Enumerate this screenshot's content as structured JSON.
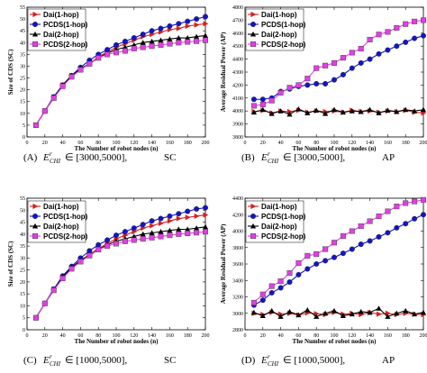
{
  "colors": {
    "dai1": "#d42020",
    "pcds1": "#1414c8",
    "dai2": "#000000",
    "pcds2": "#e040e0"
  },
  "chart_data": [
    {
      "type": "line",
      "panel": "a",
      "caption": {
        "prefix": "(A)",
        "symbol": "E",
        "sup": "r",
        "sub": "CHI",
        "range": "∈ [3000,5000],",
        "suffix": "SC"
      },
      "xlabel": "The Number of robot nodes (n)",
      "ylabel": "Size of CDS (SC)",
      "xlim": [
        0,
        200
      ],
      "ylim": [
        0,
        55
      ],
      "xticks": [
        "0",
        "20",
        "40",
        "60",
        "80",
        "100",
        "120",
        "140",
        "160",
        "180",
        "200"
      ],
      "yticks": [
        "0",
        "5",
        "10",
        "15",
        "20",
        "25",
        "30",
        "35",
        "40",
        "45",
        "50",
        "55"
      ],
      "grid": false,
      "legend": "top-left",
      "x": [
        10,
        20,
        30,
        40,
        50,
        60,
        70,
        80,
        90,
        100,
        110,
        120,
        130,
        140,
        150,
        160,
        170,
        180,
        190,
        200
      ],
      "series": [
        {
          "name": "Dai(1-hop)",
          "marker": "triangle-right",
          "color": "#d42020",
          "values": [
            5,
            11,
            17,
            22,
            26,
            29,
            31,
            34,
            36,
            38,
            39.5,
            41,
            42.5,
            43.5,
            44.5,
            45.5,
            46,
            47,
            47.5,
            48
          ]
        },
        {
          "name": "PCDS(1-hop)",
          "marker": "circle",
          "color": "#1414c8",
          "values": [
            5,
            11,
            17,
            22,
            26,
            29.5,
            32.5,
            35,
            37,
            39,
            40.5,
            42,
            43.5,
            45,
            46,
            47,
            48,
            49,
            50,
            51
          ]
        },
        {
          "name": "Dai(2-hop)",
          "marker": "triangle-up",
          "color": "#000000",
          "values": [
            5,
            11,
            16.5,
            22,
            26,
            29,
            31,
            33.5,
            35.5,
            37,
            38,
            39,
            40,
            40.5,
            41,
            41.5,
            42,
            42,
            42.5,
            43
          ]
        },
        {
          "name": "PCDS(2-hop)",
          "marker": "square",
          "color": "#e040e0",
          "values": [
            5,
            11,
            16.5,
            21.5,
            25.5,
            28.5,
            31,
            33.5,
            35,
            35.8,
            36.5,
            37.5,
            38,
            38.5,
            39,
            39.5,
            40,
            40.3,
            40.6,
            41
          ]
        }
      ]
    },
    {
      "type": "line",
      "panel": "b",
      "caption": {
        "prefix": "(B)",
        "symbol": "E",
        "sup": "r",
        "sub": "CHI",
        "range": "∈ [3000,5000],",
        "suffix": "AP"
      },
      "xlabel": "The Number of robot nodes (n)",
      "ylabel": "Average Residual Power (AP)",
      "xlim": [
        0,
        200
      ],
      "ylim": [
        3800,
        4800
      ],
      "xticks": [
        "0",
        "20",
        "40",
        "60",
        "80",
        "100",
        "120",
        "140",
        "160",
        "180",
        "200"
      ],
      "yticks": [
        "3800",
        "3900",
        "4000",
        "4100",
        "4200",
        "4300",
        "4400",
        "4500",
        "4600",
        "4700",
        "4800"
      ],
      "grid": false,
      "legend": "top-left",
      "x": [
        10,
        20,
        30,
        40,
        50,
        60,
        70,
        80,
        90,
        100,
        110,
        120,
        130,
        140,
        150,
        160,
        170,
        180,
        190,
        200
      ],
      "series": [
        {
          "name": "Dai(1-hop)",
          "marker": "triangle-right",
          "color": "#d42020",
          "values": [
            3995,
            4005,
            3985,
            4000,
            3995,
            4005,
            3990,
            4000,
            3995,
            4000,
            3990,
            4005,
            3995,
            4000,
            3990,
            4000,
            3995,
            4005,
            3990,
            3985
          ]
        },
        {
          "name": "PCDS(1-hop)",
          "marker": "circle",
          "color": "#1414c8",
          "values": [
            4090,
            4090,
            4100,
            4150,
            4170,
            4190,
            4200,
            4210,
            4210,
            4240,
            4280,
            4330,
            4370,
            4400,
            4440,
            4470,
            4500,
            4530,
            4560,
            4580
          ]
        },
        {
          "name": "Dai(2-hop)",
          "marker": "triangle-up",
          "color": "#000000",
          "values": [
            3990,
            4010,
            3980,
            4000,
            3975,
            4015,
            3985,
            4005,
            3980,
            4010,
            3990,
            4000,
            3995,
            4010,
            3985,
            4005,
            3995,
            4010,
            4000,
            4010
          ]
        },
        {
          "name": "PCDS(2-hop)",
          "marker": "square",
          "color": "#e040e0",
          "values": [
            4040,
            4050,
            4080,
            4140,
            4180,
            4200,
            4250,
            4330,
            4350,
            4370,
            4410,
            4450,
            4480,
            4550,
            4590,
            4610,
            4640,
            4670,
            4690,
            4700
          ]
        }
      ]
    },
    {
      "type": "line",
      "panel": "c",
      "caption": {
        "prefix": "(C)",
        "symbol": "E",
        "sup": "r",
        "sub": "CHI",
        "range": "∈ [1000,5000],",
        "suffix": "SC"
      },
      "xlabel": "The Number of robot nodes (n)",
      "ylabel": "Size of CDS (SC)",
      "xlim": [
        0,
        200
      ],
      "ylim": [
        0,
        55
      ],
      "xticks": [
        "0",
        "20",
        "40",
        "60",
        "80",
        "100",
        "120",
        "140",
        "160",
        "180",
        "200"
      ],
      "yticks": [
        "0",
        "5",
        "10",
        "15",
        "20",
        "25",
        "30",
        "35",
        "40",
        "45",
        "50",
        "55"
      ],
      "grid": false,
      "legend": "top-left",
      "x": [
        10,
        20,
        30,
        40,
        50,
        60,
        70,
        80,
        90,
        100,
        110,
        120,
        130,
        140,
        150,
        160,
        170,
        180,
        190,
        200
      ],
      "series": [
        {
          "name": "Dai(1-hop)",
          "marker": "triangle-right",
          "color": "#d42020",
          "values": [
            5,
            11,
            17,
            22,
            26,
            29,
            31.5,
            34,
            36,
            38,
            39.5,
            41,
            42.5,
            43.5,
            44.5,
            45.5,
            46.5,
            47,
            47.5,
            48
          ]
        },
        {
          "name": "PCDS(1-hop)",
          "marker": "circle",
          "color": "#1414c8",
          "values": [
            5,
            11,
            17,
            22.5,
            26.5,
            30,
            33,
            35.5,
            37.5,
            39.5,
            41,
            42.5,
            44,
            45.5,
            46.5,
            47.5,
            48.5,
            49.5,
            50.5,
            51
          ]
        },
        {
          "name": "Dai(2-hop)",
          "marker": "triangle-up",
          "color": "#000000",
          "values": [
            5,
            11,
            16.5,
            22,
            26,
            29,
            31,
            33.5,
            35.5,
            37,
            38,
            39,
            40,
            40.5,
            41,
            41.5,
            42,
            42,
            42.5,
            43
          ]
        },
        {
          "name": "PCDS(2-hop)",
          "marker": "square",
          "color": "#e040e0",
          "values": [
            5,
            11,
            16.5,
            21.5,
            25.5,
            28.5,
            31,
            33.5,
            35,
            36,
            37,
            37.5,
            38,
            38.5,
            39,
            39.5,
            40,
            40.3,
            40.6,
            41
          ]
        }
      ]
    },
    {
      "type": "line",
      "panel": "d",
      "caption": {
        "prefix": "(D)",
        "symbol": "E",
        "sup": "r",
        "sub": "CHI",
        "range": "∈ [1000,5000],",
        "suffix": "AP"
      },
      "xlabel": "The Number of robot nodes (n)",
      "ylabel": "Average Residual Power (AP)",
      "xlim": [
        0,
        200
      ],
      "ylim": [
        2800,
        4400
      ],
      "xticks": [
        "0",
        "20",
        "40",
        "60",
        "80",
        "100",
        "120",
        "140",
        "160",
        "180",
        "200"
      ],
      "yticks": [
        "2800",
        "3000",
        "3200",
        "3400",
        "3600",
        "3800",
        "4000",
        "4200",
        "4400"
      ],
      "grid": false,
      "legend": "top-left",
      "x": [
        10,
        20,
        30,
        40,
        50,
        60,
        70,
        80,
        90,
        100,
        110,
        120,
        130,
        140,
        150,
        160,
        170,
        180,
        190,
        200
      ],
      "series": [
        {
          "name": "Dai(1-hop)",
          "marker": "triangle-right",
          "color": "#d42020",
          "values": [
            3000,
            2985,
            3010,
            2990,
            3000,
            2980,
            3005,
            2995,
            2985,
            3010,
            2990,
            3000,
            2985,
            3010,
            2990,
            3000,
            2985,
            3000,
            2990,
            2985
          ]
        },
        {
          "name": "PCDS(1-hop)",
          "marker": "circle",
          "color": "#1414c8",
          "values": [
            3100,
            3160,
            3250,
            3310,
            3380,
            3470,
            3540,
            3600,
            3640,
            3680,
            3730,
            3780,
            3840,
            3880,
            3930,
            3980,
            4040,
            4090,
            4150,
            4200
          ]
        },
        {
          "name": "Dai(2-hop)",
          "marker": "triangle-up",
          "color": "#000000",
          "values": [
            3010,
            2970,
            3030,
            2960,
            3020,
            2980,
            3040,
            2960,
            3000,
            3030,
            2970,
            2990,
            3020,
            3010,
            3060,
            2960,
            3000,
            3030,
            2990,
            3010
          ]
        },
        {
          "name": "PCDS(2-hop)",
          "marker": "square",
          "color": "#e040e0",
          "values": [
            3130,
            3230,
            3330,
            3390,
            3490,
            3610,
            3700,
            3720,
            3780,
            3860,
            3940,
            4000,
            4060,
            4120,
            4180,
            4240,
            4300,
            4340,
            4360,
            4380
          ]
        }
      ]
    }
  ]
}
